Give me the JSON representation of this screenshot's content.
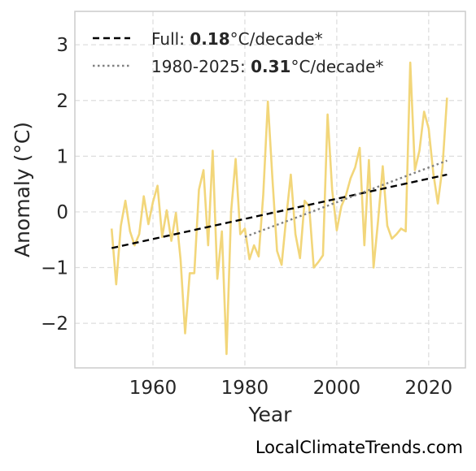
{
  "chart_data": {
    "type": "line",
    "xlabel": "Year",
    "ylabel": "Anomaly (°C)",
    "xlim": [
      1943,
      2028
    ],
    "ylim": [
      -2.8,
      3.6
    ],
    "x_ticks": [
      1960,
      1980,
      2000,
      2020
    ],
    "y_ticks": [
      -2,
      -1,
      0,
      1,
      2,
      3
    ],
    "y_tick_labels": [
      "−2",
      "−1",
      "0",
      "1",
      "2",
      "3"
    ],
    "grid": true,
    "legend_position": "top-left",
    "series": [
      {
        "kind": "annual-anomaly",
        "color": "#F2D67A",
        "x": [
          1951,
          1952,
          1953,
          1954,
          1955,
          1956,
          1957,
          1958,
          1959,
          1960,
          1961,
          1962,
          1963,
          1964,
          1965,
          1966,
          1967,
          1968,
          1969,
          1970,
          1971,
          1972,
          1973,
          1974,
          1975,
          1976,
          1977,
          1978,
          1979,
          1980,
          1981,
          1982,
          1983,
          1984,
          1985,
          1986,
          1987,
          1988,
          1989,
          1990,
          1991,
          1992,
          1993,
          1994,
          1995,
          1996,
          1997,
          1998,
          1999,
          2000,
          2001,
          2002,
          2003,
          2004,
          2005,
          2006,
          2007,
          2008,
          2009,
          2010,
          2011,
          2012,
          2013,
          2014,
          2015,
          2016,
          2017,
          2018,
          2019,
          2020,
          2021,
          2022,
          2023,
          2024
        ],
        "y": [
          -0.3,
          -1.3,
          -0.25,
          0.2,
          -0.35,
          -0.6,
          -0.4,
          0.28,
          -0.22,
          0.18,
          0.47,
          -0.45,
          0.03,
          -0.52,
          -0.02,
          -0.85,
          -2.18,
          -1.1,
          -1.1,
          0.4,
          0.75,
          -0.6,
          1.1,
          -1.2,
          -0.35,
          -2.55,
          0.0,
          0.95,
          -0.4,
          -0.3,
          -0.85,
          -0.6,
          -0.8,
          0.3,
          1.98,
          0.6,
          -0.7,
          -0.95,
          -0.1,
          0.67,
          -0.4,
          -0.83,
          0.2,
          0.1,
          -1.0,
          -0.9,
          -0.78,
          1.75,
          0.4,
          -0.33,
          0.1,
          0.3,
          0.6,
          0.8,
          1.15,
          -0.6,
          0.93,
          -1.0,
          -0.15,
          0.82,
          -0.25,
          -0.48,
          -0.4,
          -0.3,
          -0.35,
          2.68,
          0.75,
          1.1,
          1.8,
          1.5,
          0.7,
          0.15,
          0.8,
          2.05
        ]
      },
      {
        "name": "Full",
        "kind": "trend",
        "style": "dashed",
        "color": "#000000",
        "x": [
          1951,
          2024
        ],
        "y": [
          -0.65,
          0.67
        ],
        "rate": "0.18",
        "unit": "°C/decade*"
      },
      {
        "name": "1980-2025",
        "kind": "trend",
        "style": "dotted",
        "color": "#808080",
        "x": [
          1980,
          2024
        ],
        "y": [
          -0.45,
          0.92
        ],
        "rate": "0.31",
        "unit": "°C/decade*"
      }
    ]
  },
  "legend": {
    "full_label": "Full: ",
    "full_rate": "0.18",
    "full_unit": "°C/decade*",
    "recent_label": "1980-2025: ",
    "recent_rate": "0.31",
    "recent_unit": "°C/decade*"
  },
  "watermark": "LocalClimateTrends.com",
  "colors": {
    "anomaly_line": "#F2D67A",
    "full_trend": "#000000",
    "recent_trend": "#808080",
    "grid": "#DDDDDD",
    "frame": "#CCCCCC"
  }
}
